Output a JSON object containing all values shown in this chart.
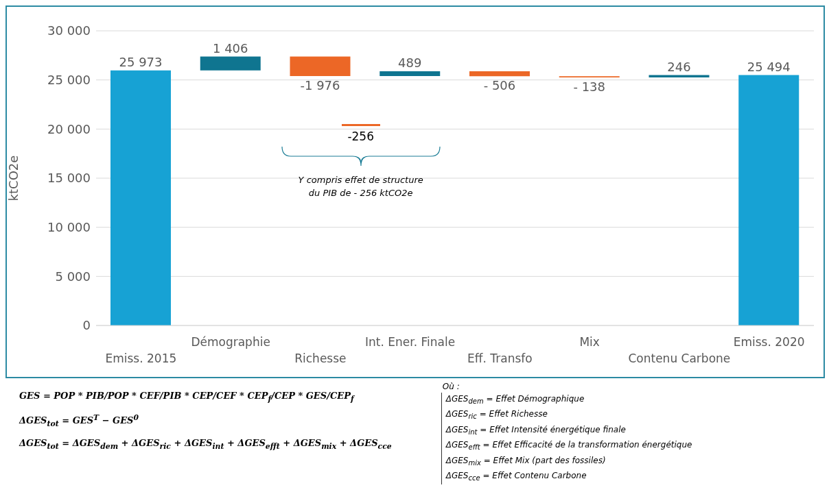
{
  "chart_data": {
    "type": "bar",
    "ylabel": "ktCO2e",
    "categories": [
      "Emiss. 2015",
      "Démographie",
      "Richesse",
      "Int. Ener. Finale",
      "Eff. Transfo",
      "Mix",
      "Contenu Carbone",
      "Emiss. 2020"
    ],
    "values": [
      25973,
      1406,
      -1976,
      489,
      -506,
      -138,
      246,
      25494
    ],
    "base": [
      0,
      25973,
      27379,
      25403,
      25892,
      25386,
      25248,
      0
    ],
    "colors": [
      "#17a2d4",
      "#0f7590",
      "#ec6726",
      "#0f7590",
      "#ec6726",
      "#ec6726",
      "#0f7590",
      "#17a2d4"
    ],
    "value_labels": [
      "25 973",
      "1 406",
      "-1 976",
      "489",
      "- 506",
      "- 138",
      "246",
      "25 494"
    ],
    "ylim": [
      0,
      30000
    ],
    "yticks": [
      {
        "value": 0,
        "label": "0"
      },
      {
        "value": 5000,
        "label": "5 000"
      },
      {
        "value": 10000,
        "label": "10 000"
      },
      {
        "value": 15000,
        "label": "15 000"
      },
      {
        "value": 20000,
        "label": "20 000"
      },
      {
        "value": 25000,
        "label": "25 000"
      },
      {
        "value": 30000,
        "label": "30 000"
      }
    ],
    "grid": "y",
    "legend": false,
    "annotations": [
      "-256",
      "Y compris effet de structure du PIB de - 256 ktCO2e",
      "GES = POP * PIB/POP * CEF/PIB * CEP/CEF * CEP$_{f}$/CEP * GES/CEP$_{f}$",
      "ΔGES$_{tot}$ = GES$^{T}$ − GES$^{0}$",
      "ΔGES$_{tot}$ = ΔGES$_{dem}$ + ΔGES$_{ric}$ + ΔGES$_{int}$ + ΔGES$_{efft}$ + ΔGES$_{mix}$ + ΔGES$_{cce}$",
      "Où :",
      "ΔGES$_{dem}$ = Effet Démographique",
      "ΔGES$_{ric}$ = Effet Richesse",
      "ΔGES$_{int}$ = Effet Intensité énergétique finale",
      "ΔGES$_{efft}$ = Effet Efficacité de la transformation énergétique",
      "ΔGES$_{mix}$ = Effet Mix (part des fossiles)",
      "ΔGES$_{cce}$ = Effet Contenu Carbone"
    ]
  }
}
